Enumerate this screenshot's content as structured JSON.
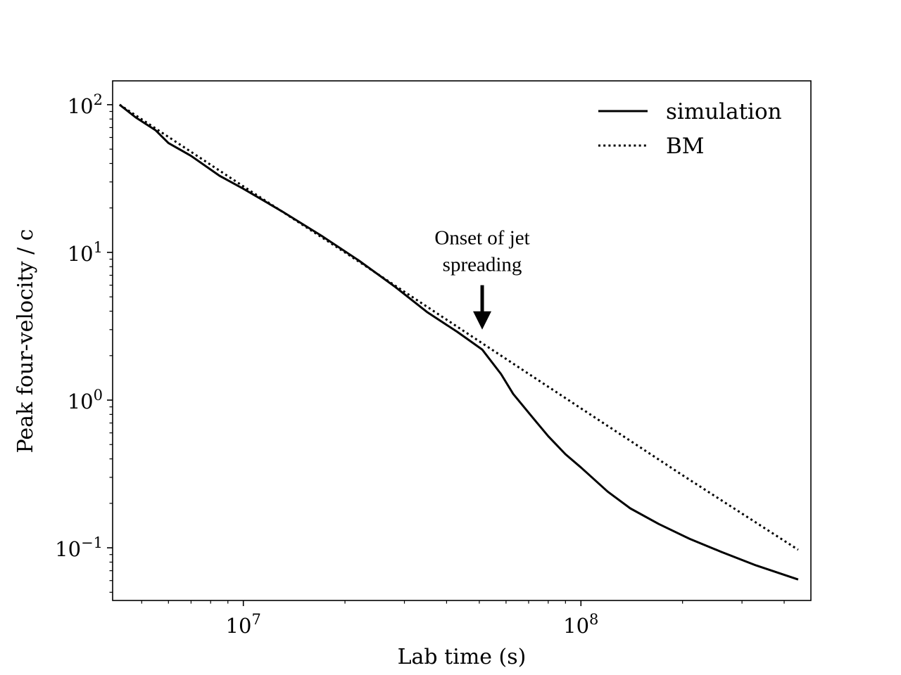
{
  "chart_data": {
    "type": "line",
    "xscale": "log",
    "yscale": "log",
    "xlabel": "Lab time (s)",
    "ylabel": "Peak four-velocity / c",
    "xlim": [
      4100000.0,
      480000000.0
    ],
    "ylim": [
      0.044,
      145
    ],
    "x_ticks": [
      {
        "value": 10000000.0,
        "base": "10",
        "exp": "7"
      },
      {
        "value": 100000000.0,
        "base": "10",
        "exp": "8"
      }
    ],
    "y_ticks": [
      {
        "value": 100,
        "base": "10",
        "exp": "2"
      },
      {
        "value": 10,
        "base": "10",
        "exp": "1"
      },
      {
        "value": 1,
        "base": "10",
        "exp": "0"
      },
      {
        "value": 0.1,
        "base": "10",
        "exp": "−1"
      }
    ],
    "series": [
      {
        "name": "simulation",
        "style": "solid",
        "x": [
          4300000.0,
          4800000.0,
          5500000.0,
          6000000.0,
          7000000.0,
          8500000.0,
          10000000.0,
          13000000.0,
          17000000.0,
          22000000.0,
          28000000.0,
          35000000.0,
          43000000.0,
          46000000.0,
          51000000.0,
          58000000.0,
          63000000.0,
          72000000.0,
          80000000.0,
          90000000.0,
          100000000.0,
          120000000.0,
          140000000.0,
          170000000.0,
          210000000.0,
          260000000.0,
          330000000.0,
          440000000.0
        ],
        "y": [
          100,
          82,
          67,
          55,
          45,
          33,
          27,
          19,
          13,
          8.8,
          5.9,
          3.95,
          2.9,
          2.6,
          2.2,
          1.5,
          1.1,
          0.76,
          0.57,
          0.43,
          0.35,
          0.24,
          0.185,
          0.145,
          0.115,
          0.094,
          0.076,
          0.061
        ]
      },
      {
        "name": "BM",
        "style": "dotted",
        "x": [
          4300000.0,
          10000000.0,
          20000000.0,
          50000000.0,
          100000000.0,
          200000000.0,
          440000000.0
        ],
        "y": [
          100,
          28,
          10,
          2.5,
          0.88,
          0.31,
          0.097
        ]
      }
    ],
    "legend": {
      "position": "top-right",
      "entries": [
        {
          "label": "simulation",
          "style": "solid"
        },
        {
          "label": "BM",
          "style": "dotted"
        }
      ]
    },
    "annotation": {
      "lines": [
        "Onset of jet",
        "spreading"
      ],
      "x": 51000000.0,
      "text_y": 8.0,
      "arrow_tail_y": 6.0,
      "arrow_tip_y": 3.0
    }
  }
}
